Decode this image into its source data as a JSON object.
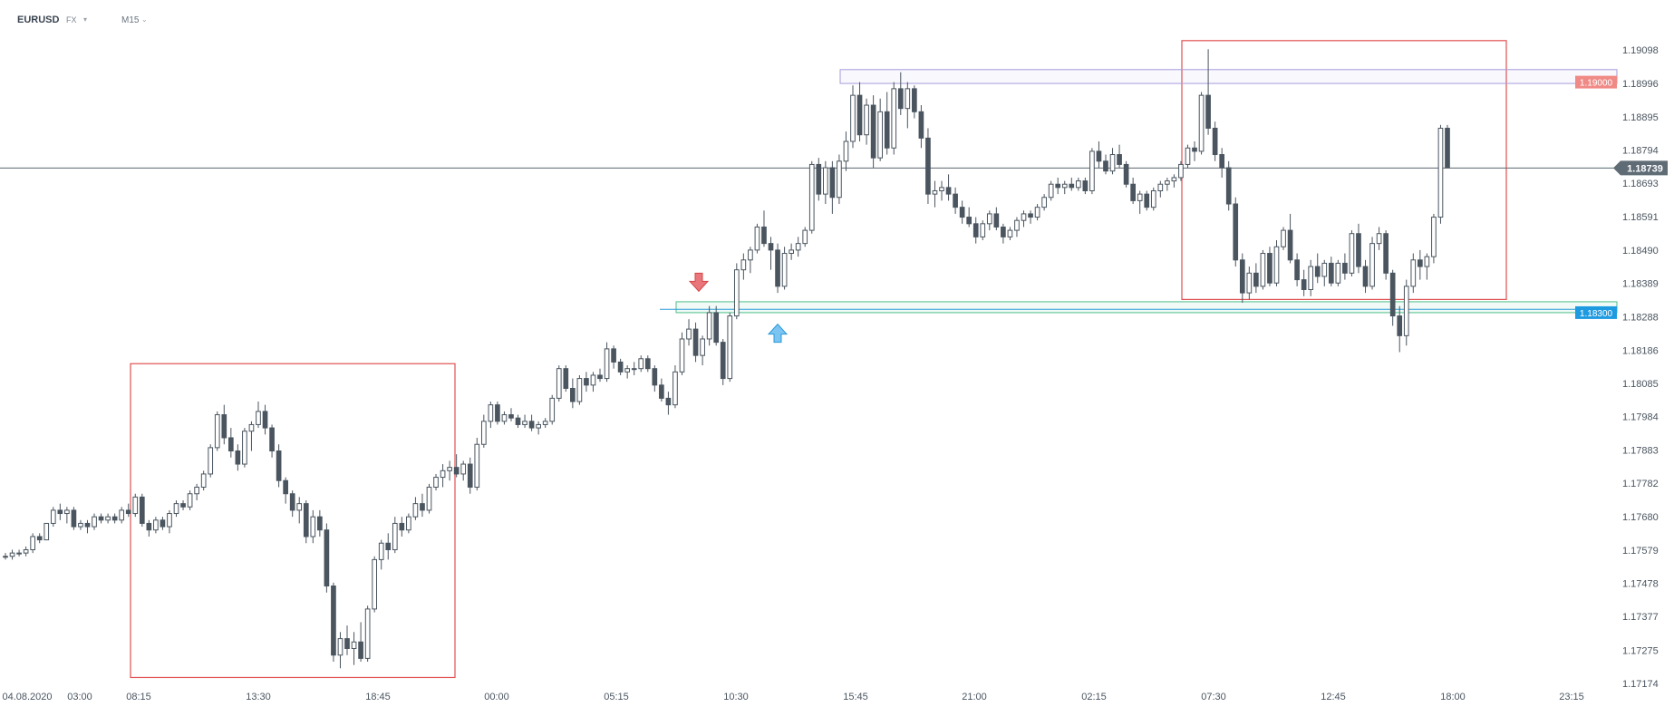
{
  "header": {
    "symbol": "EURUSD",
    "market": "FX",
    "timeframe": "M15"
  },
  "chart_data": {
    "type": "candlestick",
    "symbol": "EURUSD",
    "timeframe": "M15",
    "ylim": [
      1.1717,
      1.1911
    ],
    "y_ticks": [
      "1.19098",
      "1.18996",
      "1.18895",
      "1.18794",
      "1.18693",
      "1.18591",
      "1.18490",
      "1.18389",
      "1.18288",
      "1.18186",
      "1.18085",
      "1.17984",
      "1.17883",
      "1.17782",
      "1.17680",
      "1.17579",
      "1.17478",
      "1.17377",
      "1.17275",
      "1.17174"
    ],
    "x_ticks": [
      "04.08.2020",
      "03:00",
      "08:15",
      "13:30",
      "18:45",
      "00:00",
      "05:15",
      "10:30",
      "15:45",
      "21:00",
      "02:15",
      "07:30",
      "12:45",
      "18:00",
      "23:15"
    ],
    "current_price": "1.18739",
    "level_labels": {
      "resistance": "1.19000",
      "support": "1.18300"
    },
    "annotations": [
      "sell-signal-arrow",
      "buy-signal-arrow",
      "range-box-left",
      "range-box-right",
      "support-zone",
      "resistance-zone"
    ],
    "candles": [
      [
        1.1756,
        1.1757,
        1.1755,
        1.1756
      ],
      [
        1.1756,
        1.1758,
        1.1755,
        1.1757
      ],
      [
        1.1757,
        1.1758,
        1.1756,
        1.1757
      ],
      [
        1.1757,
        1.1759,
        1.1756,
        1.1758
      ],
      [
        1.1758,
        1.1763,
        1.1757,
        1.1762
      ],
      [
        1.1762,
        1.1763,
        1.176,
        1.1761
      ],
      [
        1.1761,
        1.1766,
        1.1761,
        1.1766
      ],
      [
        1.1766,
        1.1771,
        1.1765,
        1.177
      ],
      [
        1.177,
        1.1772,
        1.1767,
        1.1769
      ],
      [
        1.1769,
        1.1771,
        1.1766,
        1.177
      ],
      [
        1.177,
        1.1771,
        1.1764,
        1.1765
      ],
      [
        1.1765,
        1.1767,
        1.1764,
        1.1766
      ],
      [
        1.1766,
        1.1767,
        1.1763,
        1.1765
      ],
      [
        1.1765,
        1.1769,
        1.1764,
        1.1768
      ],
      [
        1.1768,
        1.1769,
        1.1766,
        1.1767
      ],
      [
        1.1767,
        1.1769,
        1.1766,
        1.1768
      ],
      [
        1.1768,
        1.1769,
        1.1766,
        1.1767
      ],
      [
        1.1767,
        1.1771,
        1.1766,
        1.177
      ],
      [
        1.177,
        1.1772,
        1.1768,
        1.1769
      ],
      [
        1.1769,
        1.1775,
        1.1768,
        1.1774
      ],
      [
        1.1774,
        1.1775,
        1.1765,
        1.1766
      ],
      [
        1.1766,
        1.1767,
        1.1762,
        1.1764
      ],
      [
        1.1764,
        1.1768,
        1.1763,
        1.1767
      ],
      [
        1.1767,
        1.1768,
        1.1764,
        1.1765
      ],
      [
        1.1765,
        1.177,
        1.1763,
        1.1769
      ],
      [
        1.1769,
        1.1773,
        1.1768,
        1.1772
      ],
      [
        1.1772,
        1.1773,
        1.177,
        1.1771
      ],
      [
        1.1771,
        1.1776,
        1.177,
        1.1775
      ],
      [
        1.1775,
        1.1778,
        1.1773,
        1.1777
      ],
      [
        1.1777,
        1.1782,
        1.1776,
        1.1781
      ],
      [
        1.1781,
        1.179,
        1.178,
        1.1789
      ],
      [
        1.1789,
        1.18,
        1.1788,
        1.1799
      ],
      [
        1.1799,
        1.1802,
        1.179,
        1.1792
      ],
      [
        1.1792,
        1.1795,
        1.1786,
        1.1788
      ],
      [
        1.1788,
        1.179,
        1.1782,
        1.1784
      ],
      [
        1.1784,
        1.1795,
        1.1783,
        1.1794
      ],
      [
        1.1794,
        1.1797,
        1.1788,
        1.1796
      ],
      [
        1.1796,
        1.1803,
        1.1795,
        1.18
      ],
      [
        1.18,
        1.1802,
        1.1793,
        1.1795
      ],
      [
        1.1795,
        1.1796,
        1.1786,
        1.1788
      ],
      [
        1.1788,
        1.179,
        1.1777,
        1.1779
      ],
      [
        1.1779,
        1.178,
        1.1772,
        1.1775
      ],
      [
        1.1775,
        1.1776,
        1.1768,
        1.177
      ],
      [
        1.177,
        1.1774,
        1.1766,
        1.1772
      ],
      [
        1.1772,
        1.1773,
        1.176,
        1.1762
      ],
      [
        1.1762,
        1.177,
        1.176,
        1.1768
      ],
      [
        1.1768,
        1.177,
        1.1762,
        1.1764
      ],
      [
        1.1764,
        1.1766,
        1.1745,
        1.1747
      ],
      [
        1.1747,
        1.1748,
        1.1724,
        1.1726
      ],
      [
        1.1726,
        1.1733,
        1.1722,
        1.1731
      ],
      [
        1.1731,
        1.1735,
        1.1726,
        1.1728
      ],
      [
        1.1728,
        1.1733,
        1.1723,
        1.173
      ],
      [
        1.173,
        1.1736,
        1.1724,
        1.1725
      ],
      [
        1.1725,
        1.1741,
        1.1724,
        1.174
      ],
      [
        1.174,
        1.1756,
        1.1739,
        1.1755
      ],
      [
        1.1755,
        1.1761,
        1.1752,
        1.176
      ],
      [
        1.176,
        1.1763,
        1.1755,
        1.1758
      ],
      [
        1.1758,
        1.1768,
        1.1757,
        1.1766
      ],
      [
        1.1766,
        1.1768,
        1.1762,
        1.1764
      ],
      [
        1.1764,
        1.1769,
        1.1763,
        1.1768
      ],
      [
        1.1768,
        1.1774,
        1.1767,
        1.1772
      ],
      [
        1.1772,
        1.1775,
        1.1768,
        1.177
      ],
      [
        1.177,
        1.1778,
        1.1769,
        1.1777
      ],
      [
        1.1777,
        1.1781,
        1.1776,
        1.178
      ],
      [
        1.178,
        1.1784,
        1.1777,
        1.1782
      ],
      [
        1.1782,
        1.1785,
        1.1779,
        1.1783
      ],
      [
        1.1783,
        1.1787,
        1.178,
        1.1781
      ],
      [
        1.1781,
        1.1785,
        1.1779,
        1.1784
      ],
      [
        1.1784,
        1.1786,
        1.1775,
        1.1777
      ],
      [
        1.1777,
        1.1792,
        1.1776,
        1.179
      ],
      [
        1.179,
        1.1799,
        1.1789,
        1.1797
      ],
      [
        1.1797,
        1.1803,
        1.1795,
        1.1802
      ],
      [
        1.1802,
        1.1803,
        1.1796,
        1.1797
      ],
      [
        1.1797,
        1.18,
        1.1796,
        1.1799
      ],
      [
        1.1799,
        1.1801,
        1.1797,
        1.1798
      ],
      [
        1.1798,
        1.1799,
        1.1795,
        1.1796
      ],
      [
        1.1796,
        1.1799,
        1.1795,
        1.1797
      ],
      [
        1.1797,
        1.1799,
        1.1794,
        1.1795
      ],
      [
        1.1795,
        1.1797,
        1.1793,
        1.1796
      ],
      [
        1.1796,
        1.1798,
        1.1795,
        1.1797
      ],
      [
        1.1797,
        1.1805,
        1.1796,
        1.1804
      ],
      [
        1.1804,
        1.1814,
        1.1803,
        1.1813
      ],
      [
        1.1813,
        1.1814,
        1.1806,
        1.1807
      ],
      [
        1.1807,
        1.181,
        1.1801,
        1.1803
      ],
      [
        1.1803,
        1.1811,
        1.1802,
        1.181
      ],
      [
        1.181,
        1.1812,
        1.1806,
        1.1808
      ],
      [
        1.1808,
        1.1812,
        1.1806,
        1.1811
      ],
      [
        1.1811,
        1.1813,
        1.1809,
        1.181
      ],
      [
        1.181,
        1.1821,
        1.1809,
        1.1819
      ],
      [
        1.1819,
        1.182,
        1.1813,
        1.1815
      ],
      [
        1.1815,
        1.1816,
        1.1811,
        1.1812
      ],
      [
        1.1812,
        1.1814,
        1.181,
        1.1813
      ],
      [
        1.1813,
        1.1815,
        1.1811,
        1.1813
      ],
      [
        1.1813,
        1.1817,
        1.1812,
        1.1816
      ],
      [
        1.1816,
        1.1817,
        1.1812,
        1.1813
      ],
      [
        1.1813,
        1.1814,
        1.1806,
        1.1808
      ],
      [
        1.1808,
        1.181,
        1.1803,
        1.1804
      ],
      [
        1.1804,
        1.1806,
        1.1799,
        1.1802
      ],
      [
        1.1802,
        1.1814,
        1.1801,
        1.1812
      ],
      [
        1.1812,
        1.1824,
        1.1811,
        1.1822
      ],
      [
        1.1822,
        1.1828,
        1.182,
        1.1825
      ],
      [
        1.1825,
        1.1827,
        1.1815,
        1.1817
      ],
      [
        1.1817,
        1.1823,
        1.1814,
        1.1822
      ],
      [
        1.1822,
        1.1832,
        1.182,
        1.183
      ],
      [
        1.183,
        1.1832,
        1.182,
        1.1821
      ],
      [
        1.1821,
        1.1822,
        1.1808,
        1.181
      ],
      [
        1.181,
        1.183,
        1.1809,
        1.1829
      ],
      [
        1.1829,
        1.1845,
        1.1828,
        1.1843
      ],
      [
        1.1843,
        1.1848,
        1.184,
        1.1846
      ],
      [
        1.1846,
        1.185,
        1.1842,
        1.1849
      ],
      [
        1.1849,
        1.1857,
        1.1848,
        1.1856
      ],
      [
        1.1856,
        1.1861,
        1.185,
        1.1851
      ],
      [
        1.1851,
        1.1853,
        1.1843,
        1.1849
      ],
      [
        1.1849,
        1.1851,
        1.1836,
        1.1838
      ],
      [
        1.1838,
        1.185,
        1.1837,
        1.1848
      ],
      [
        1.1848,
        1.1851,
        1.1846,
        1.1849
      ],
      [
        1.1849,
        1.1853,
        1.1847,
        1.1851
      ],
      [
        1.1851,
        1.1856,
        1.185,
        1.1855
      ],
      [
        1.1855,
        1.1876,
        1.1854,
        1.1875
      ],
      [
        1.1875,
        1.1877,
        1.1864,
        1.1866
      ],
      [
        1.1866,
        1.1876,
        1.1863,
        1.1874
      ],
      [
        1.1874,
        1.1876,
        1.186,
        1.1865
      ],
      [
        1.1865,
        1.1878,
        1.1863,
        1.1876
      ],
      [
        1.1876,
        1.1885,
        1.1873,
        1.1882
      ],
      [
        1.1882,
        1.1899,
        1.188,
        1.1896
      ],
      [
        1.1896,
        1.19,
        1.1882,
        1.1884
      ],
      [
        1.1884,
        1.1895,
        1.1881,
        1.1893
      ],
      [
        1.1893,
        1.1896,
        1.1874,
        1.1877
      ],
      [
        1.1877,
        1.1895,
        1.1876,
        1.1891
      ],
      [
        1.1891,
        1.1897,
        1.1878,
        1.188
      ],
      [
        1.188,
        1.19,
        1.1878,
        1.1898
      ],
      [
        1.1898,
        1.1903,
        1.189,
        1.1892
      ],
      [
        1.1892,
        1.19,
        1.1886,
        1.1898
      ],
      [
        1.1898,
        1.1899,
        1.1889,
        1.1891
      ],
      [
        1.1891,
        1.1893,
        1.188,
        1.1883
      ],
      [
        1.1883,
        1.1886,
        1.1863,
        1.1866
      ],
      [
        1.1866,
        1.187,
        1.1862,
        1.1867
      ],
      [
        1.1867,
        1.187,
        1.1864,
        1.1868
      ],
      [
        1.1868,
        1.1872,
        1.1864,
        1.1866
      ],
      [
        1.1866,
        1.1868,
        1.186,
        1.1862
      ],
      [
        1.1862,
        1.1864,
        1.1857,
        1.1859
      ],
      [
        1.1859,
        1.1862,
        1.1856,
        1.1857
      ],
      [
        1.1857,
        1.1859,
        1.1851,
        1.1853
      ],
      [
        1.1853,
        1.1858,
        1.1852,
        1.1857
      ],
      [
        1.1857,
        1.1861,
        1.1855,
        1.186
      ],
      [
        1.186,
        1.1862,
        1.1855,
        1.1856
      ],
      [
        1.1856,
        1.1857,
        1.1851,
        1.1853
      ],
      [
        1.1853,
        1.1856,
        1.1852,
        1.1855
      ],
      [
        1.1855,
        1.1859,
        1.1853,
        1.1858
      ],
      [
        1.1858,
        1.1861,
        1.1856,
        1.186
      ],
      [
        1.186,
        1.1861,
        1.1857,
        1.1859
      ],
      [
        1.1859,
        1.1863,
        1.1858,
        1.1862
      ],
      [
        1.1862,
        1.1866,
        1.1861,
        1.1865
      ],
      [
        1.1865,
        1.187,
        1.1864,
        1.1869
      ],
      [
        1.1869,
        1.1871,
        1.1866,
        1.1868
      ],
      [
        1.1868,
        1.187,
        1.1866,
        1.1869
      ],
      [
        1.1869,
        1.1871,
        1.1867,
        1.1868
      ],
      [
        1.1868,
        1.1871,
        1.1867,
        1.187
      ],
      [
        1.187,
        1.1871,
        1.1866,
        1.1867
      ],
      [
        1.1867,
        1.188,
        1.1866,
        1.1879
      ],
      [
        1.1879,
        1.1882,
        1.1874,
        1.1876
      ],
      [
        1.1876,
        1.1878,
        1.1872,
        1.1873
      ],
      [
        1.1873,
        1.188,
        1.1872,
        1.1878
      ],
      [
        1.1878,
        1.1881,
        1.1874,
        1.1875
      ],
      [
        1.1875,
        1.1876,
        1.1868,
        1.1869
      ],
      [
        1.1869,
        1.1871,
        1.1863,
        1.1864
      ],
      [
        1.1864,
        1.1867,
        1.186,
        1.1866
      ],
      [
        1.1866,
        1.1867,
        1.1861,
        1.1862
      ],
      [
        1.1862,
        1.1868,
        1.1861,
        1.1867
      ],
      [
        1.1867,
        1.187,
        1.1865,
        1.1869
      ],
      [
        1.1869,
        1.1871,
        1.1867,
        1.187
      ],
      [
        1.187,
        1.1872,
        1.1868,
        1.1871
      ],
      [
        1.1871,
        1.1876,
        1.187,
        1.1875
      ],
      [
        1.1875,
        1.1881,
        1.1874,
        1.188
      ],
      [
        1.188,
        1.1882,
        1.1876,
        1.1879
      ],
      [
        1.1879,
        1.1897,
        1.1878,
        1.1896
      ],
      [
        1.1896,
        1.191,
        1.1884,
        1.1886
      ],
      [
        1.1886,
        1.1888,
        1.1876,
        1.1878
      ],
      [
        1.1878,
        1.188,
        1.1871,
        1.1874
      ],
      [
        1.1874,
        1.1876,
        1.1861,
        1.1863
      ],
      [
        1.1863,
        1.1865,
        1.1844,
        1.1846
      ],
      [
        1.1846,
        1.1848,
        1.1833,
        1.1836
      ],
      [
        1.1836,
        1.1844,
        1.1834,
        1.1842
      ],
      [
        1.1842,
        1.1845,
        1.1836,
        1.1838
      ],
      [
        1.1838,
        1.1849,
        1.1837,
        1.1848
      ],
      [
        1.1848,
        1.185,
        1.1838,
        1.1839
      ],
      [
        1.1839,
        1.1852,
        1.1838,
        1.185
      ],
      [
        1.185,
        1.1856,
        1.1849,
        1.1855
      ],
      [
        1.1855,
        1.186,
        1.1845,
        1.1846
      ],
      [
        1.1846,
        1.1848,
        1.1838,
        1.184
      ],
      [
        1.184,
        1.1843,
        1.1835,
        1.1837
      ],
      [
        1.1837,
        1.1846,
        1.1835,
        1.1844
      ],
      [
        1.1844,
        1.1848,
        1.1839,
        1.1841
      ],
      [
        1.1841,
        1.1846,
        1.1838,
        1.1845
      ],
      [
        1.1845,
        1.1847,
        1.1838,
        1.1839
      ],
      [
        1.1839,
        1.1846,
        1.1838,
        1.1845
      ],
      [
        1.1845,
        1.1848,
        1.184,
        1.1842
      ],
      [
        1.1842,
        1.1855,
        1.1841,
        1.1854
      ],
      [
        1.1854,
        1.1857,
        1.1842,
        1.1844
      ],
      [
        1.1844,
        1.1846,
        1.1836,
        1.1838
      ],
      [
        1.1838,
        1.1853,
        1.1837,
        1.1851
      ],
      [
        1.1851,
        1.1856,
        1.1849,
        1.1854
      ],
      [
        1.1854,
        1.1855,
        1.184,
        1.1842
      ],
      [
        1.1842,
        1.1843,
        1.1826,
        1.1829
      ],
      [
        1.1829,
        1.1832,
        1.1818,
        1.1823
      ],
      [
        1.1823,
        1.184,
        1.182,
        1.1838
      ],
      [
        1.1838,
        1.1848,
        1.1836,
        1.1846
      ],
      [
        1.1846,
        1.1849,
        1.184,
        1.1844
      ],
      [
        1.1844,
        1.1848,
        1.184,
        1.1847
      ],
      [
        1.1847,
        1.186,
        1.1845,
        1.1859
      ],
      [
        1.1859,
        1.1887,
        1.1857,
        1.1886
      ],
      [
        1.1886,
        1.1887,
        1.1874,
        1.1874
      ]
    ]
  }
}
